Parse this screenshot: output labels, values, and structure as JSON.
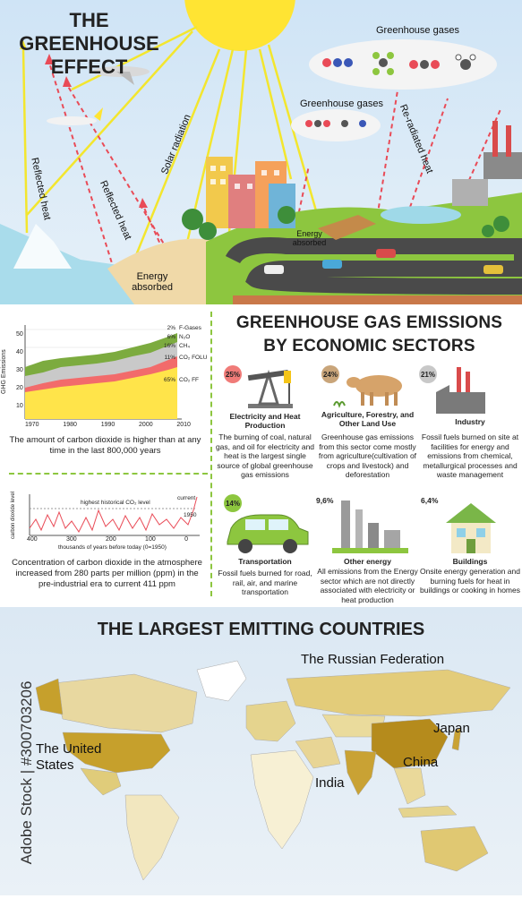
{
  "effect": {
    "title": "THE GREENHOUSE EFFECT",
    "labels": {
      "greenhouse_gases_top": "Greenhouse gases",
      "greenhouse_gases_mid": "Greenhouse gases",
      "reflected_heat_1": "Reflected heat",
      "reflected_heat_2": "Reflected heat",
      "solar_radiation": "Solar radiation",
      "reradiated_heat": "Re-radiated heat",
      "energy_absorbed_1": "Energy absorbed",
      "energy_absorbed_2": "Energy absorbed"
    },
    "colors": {
      "sky": "#d6e8f6",
      "sun": "#ffe433",
      "ray": "#f5ea3a",
      "heat": "#e94b57",
      "grass": "#8dc63f",
      "sea": "#9fd9e8"
    }
  },
  "chart1": {
    "y_axis_label": "GHG Emissions",
    "y_ticks": [
      "50",
      "40",
      "30",
      "20",
      "10"
    ],
    "x_ticks": [
      "1970",
      "1980",
      "1990",
      "2000",
      "2010"
    ],
    "legend": [
      {
        "pct": "2%",
        "name": "F-Gases"
      },
      {
        "pct": "6%",
        "name": "N₂O"
      },
      {
        "pct": "16%",
        "name": "CH₄"
      },
      {
        "pct": "11%",
        "name": "CO₂ FOLU"
      },
      {
        "pct": "65%",
        "name": "CO₂ FF"
      }
    ],
    "caption": "The amount of carbon dioxide is higher than at any time in the last 800,000 years"
  },
  "chart2": {
    "y_axis_label": "carbon dioxide level",
    "inner_label": "highest historical CO₂ level",
    "current_label": "current",
    "year_label": "1950",
    "x_ticks": [
      "400",
      "300",
      "200",
      "100",
      "0"
    ],
    "x_axis_label": "thousands of years before today (0=1950)",
    "caption": "Concentration of carbon dioxide in the atmosphere increased from 280 parts per million (ppm) in the pre-industrial era to current 411 ppm"
  },
  "sectors": {
    "title_line1": "GREENHOUSE GAS EMISSIONS",
    "title_line2": "BY ECONOMIC SECTORS",
    "items": [
      {
        "pct": "25%",
        "name": "Electricity and Heat Production",
        "desc": "The burning of coal, natural gas, and oil for electricity and heat is the largest single source of global greenhouse gas emissions",
        "color": "#f07b78"
      },
      {
        "pct": "24%",
        "name": "Agriculture, Forestry, and Other Land Use",
        "desc": "Greenhouse gas emissions from this sector come mostly from agriculture(cultivation of crops and livestock) and deforestation",
        "color": "#c9a57a"
      },
      {
        "pct": "21%",
        "name": "Industry",
        "desc": "Fossil fuels burned on site at facilities for energy and emissions from chemical, metallurgical processes and waste management",
        "color": "#c8c8c8"
      },
      {
        "pct": "14%",
        "name": "Transportation",
        "desc": "Fossil fuels burned for road, rail, air, and marine transportation",
        "color": "#8dc63f"
      },
      {
        "pct": "9,6%",
        "name": "Other energy",
        "desc": "All emissions from the Energy sector which are not directly associated with electricity or heat production",
        "color": "#ffffff"
      },
      {
        "pct": "6,4%",
        "name": "Buildings",
        "desc": "Onsite energy generation and burning fuels for heat in buildings or cooking in homes",
        "color": "#ffffff"
      }
    ]
  },
  "countries": {
    "title": "THE LARGEST EMITTING COUNTRIES",
    "names": {
      "russia": "The Russian Federation",
      "usa": "The United States",
      "japan": "Japan",
      "china": "China",
      "india": "India"
    }
  },
  "watermark": "Adobe Stock | #300703206"
}
